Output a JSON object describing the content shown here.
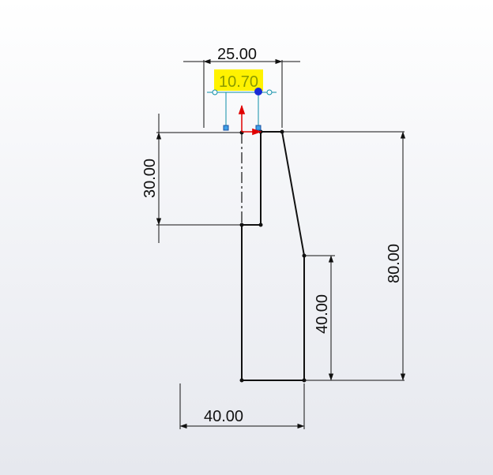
{
  "dimensions": {
    "top_width": "25.00",
    "active_offset": "10.70",
    "upper_height": "30.00",
    "total_height": "80.00",
    "lower_height": "40.00",
    "bottom_width": "40.00"
  },
  "colors": {
    "part_fill_top": "#8f92ab",
    "part_fill_bottom": "#b0b3c6",
    "highlight": "#fff200",
    "active_text": "#8a9a00",
    "active_lines": "#0f8fa8",
    "arrow_red": "#e00000",
    "handle_blue": "#1a2bd6",
    "dimension_black": "#111111"
  }
}
